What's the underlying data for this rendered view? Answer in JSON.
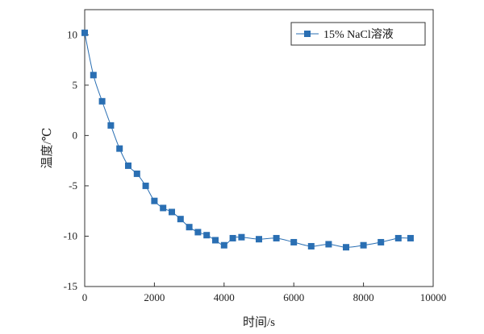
{
  "chart_data": {
    "type": "line",
    "title": "",
    "xlabel": "时间/s",
    "ylabel": "温度/℃",
    "xlim": [
      0,
      10000
    ],
    "ylim": [
      -15,
      12.5
    ],
    "xticks": [
      0,
      2000,
      4000,
      6000,
      8000,
      10000
    ],
    "yticks": [
      10,
      5,
      0,
      -5,
      -10,
      -15
    ],
    "grid": false,
    "legend_position": "top-right",
    "series": [
      {
        "name": "15% NaCl溶液",
        "color": "#2a6fb3",
        "marker": "square",
        "x": [
          0,
          250,
          500,
          750,
          1000,
          1250,
          1500,
          1750,
          2000,
          2250,
          2500,
          2750,
          3000,
          3250,
          3500,
          3750,
          4000,
          4250,
          4500,
          5000,
          5500,
          6000,
          6500,
          7000,
          7500,
          8000,
          8500,
          9000,
          9350
        ],
        "y": [
          10.2,
          6.0,
          3.4,
          1.0,
          -1.3,
          -3.0,
          -3.8,
          -5.0,
          -6.5,
          -7.2,
          -7.6,
          -8.3,
          -9.1,
          -9.6,
          -9.9,
          -10.4,
          -10.9,
          -10.2,
          -10.1,
          -10.3,
          -10.2,
          -10.6,
          -11.0,
          -10.8,
          -11.1,
          -10.9,
          -10.6,
          -10.2,
          -10.2
        ]
      }
    ]
  }
}
